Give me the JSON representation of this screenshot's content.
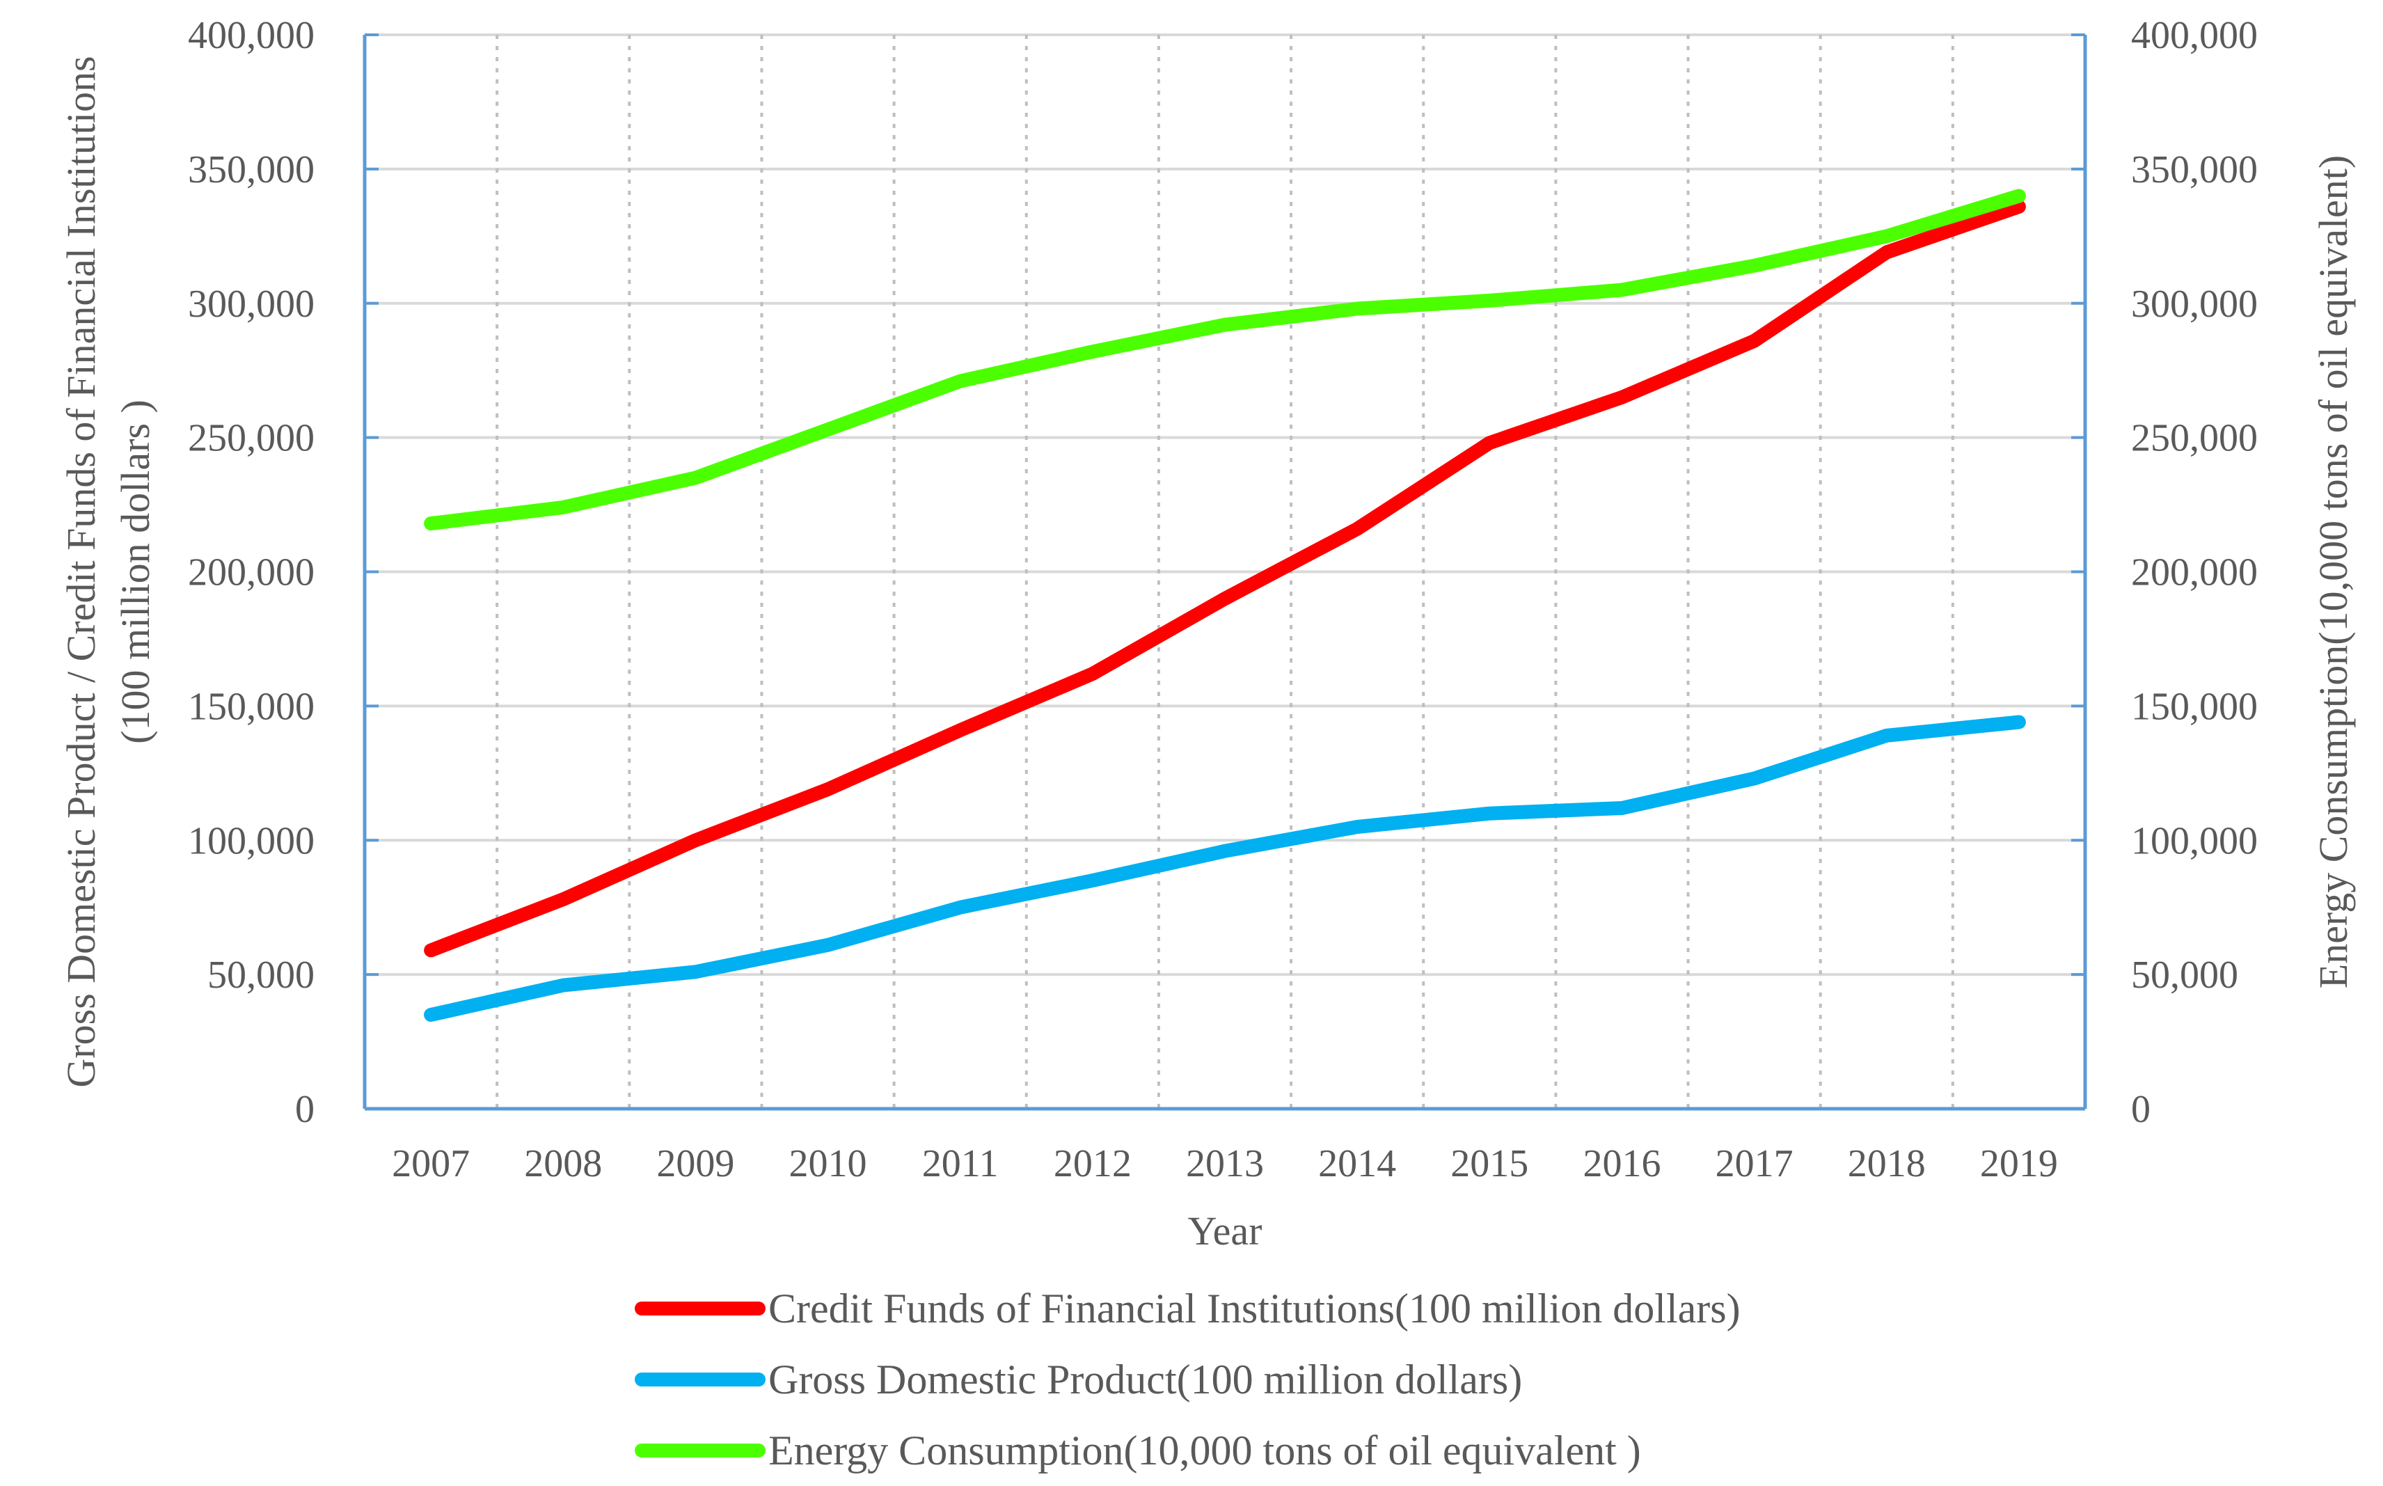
{
  "chart_data": {
    "type": "line",
    "xlabel": "Year",
    "ylabel_left": [
      "Gross Domestic Product / Credit Funds of Financial Institutions",
      "(100 million dollars )"
    ],
    "ylabel_right": "Energy Consumption(10,000 tons of oil equivalent)",
    "x": [
      "2007",
      "2008",
      "2009",
      "2010",
      "2011",
      "2012",
      "2013",
      "2014",
      "2015",
      "2016",
      "2017",
      "2018",
      "2019"
    ],
    "ylim_left": [
      0,
      400000
    ],
    "ylim_right": [
      0,
      400000
    ],
    "yticks_left": [
      "0",
      "50,000",
      "100,000",
      "150,000",
      "200,000",
      "250,000",
      "300,000",
      "350,000",
      "400,000"
    ],
    "yticks_right": [
      "0",
      "50,000",
      "100,000",
      "150,000",
      "200,000",
      "250,000",
      "300,000",
      "350,000",
      "400,000"
    ],
    "grid": true,
    "legend_position": "bottom",
    "series": [
      {
        "name": "Credit Funds of Financial Institutions(100 million dollars)",
        "color": "#ff0000",
        "axis": "left",
        "values": [
          59000,
          78000,
          100000,
          119000,
          141000,
          162000,
          190000,
          216000,
          248000,
          265000,
          286000,
          319000,
          336000
        ]
      },
      {
        "name": "Gross Domestic Product(100 million dollars)",
        "color": "#00b0f0",
        "axis": "left",
        "values": [
          35000,
          46000,
          51000,
          61000,
          75000,
          85000,
          96000,
          105000,
          110000,
          112000,
          123000,
          139000,
          144000
        ]
      },
      {
        "name": "Energy Consumption(10,000 tons of oil equivalent )",
        "color": "#4cff00",
        "axis": "right",
        "values": [
          218000,
          224000,
          235000,
          253000,
          271000,
          282000,
          292000,
          298000,
          301000,
          305000,
          314000,
          325000,
          340000
        ]
      }
    ]
  }
}
